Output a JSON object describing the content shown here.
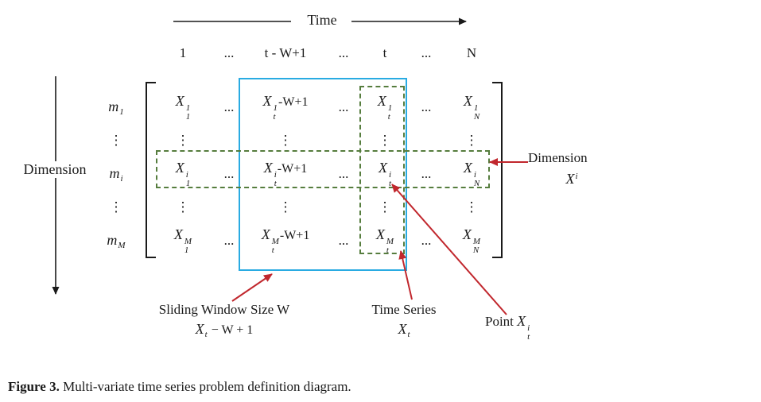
{
  "axes": {
    "time_label": "Time",
    "dimension_label": "Dimension"
  },
  "matrix": {
    "column_headers": [
      "1",
      "...",
      "t - W+1",
      "...",
      "t",
      "...",
      "N"
    ],
    "row_labels": [
      {
        "b": "m",
        "sub": "1"
      },
      {
        "t": "⋮"
      },
      {
        "b": "m",
        "sub": "i"
      },
      {
        "t": "⋮"
      },
      {
        "b": "m",
        "sub": "M"
      }
    ],
    "rows": [
      [
        {
          "b": "X",
          "sup": "1",
          "sub": "1"
        },
        {
          "t": "..."
        },
        {
          "b": "X",
          "sup": "1",
          "sub": "t",
          "tail": "-W+1"
        },
        {
          "t": "..."
        },
        {
          "b": "X",
          "sup": "1",
          "sub": "t"
        },
        {
          "t": "..."
        },
        {
          "b": "X",
          "sup": "1",
          "sub": "N"
        }
      ],
      [
        {
          "t": "⋮"
        },
        {
          "t": ""
        },
        {
          "t": "⋮"
        },
        {
          "t": ""
        },
        {
          "t": "⋮"
        },
        {
          "t": ""
        },
        {
          "t": "⋮"
        }
      ],
      [
        {
          "b": "X",
          "sup": "i",
          "sub": "1"
        },
        {
          "t": "..."
        },
        {
          "b": "X",
          "sup": "i",
          "sub": "t",
          "tail": "-W+1"
        },
        {
          "t": "..."
        },
        {
          "b": "X",
          "sup": "i",
          "sub": "t"
        },
        {
          "t": "..."
        },
        {
          "b": "X",
          "sup": "i",
          "sub": "N"
        }
      ],
      [
        {
          "t": "⋮"
        },
        {
          "t": ""
        },
        {
          "t": "⋮"
        },
        {
          "t": ""
        },
        {
          "t": "⋮"
        },
        {
          "t": ""
        },
        {
          "t": "⋮"
        }
      ],
      [
        {
          "b": "X",
          "sup": "M",
          "sub": "1"
        },
        {
          "t": "..."
        },
        {
          "b": "X",
          "sup": "M",
          "sub": "t",
          "tail": "-W+1"
        },
        {
          "t": "..."
        },
        {
          "b": "X",
          "sup": "M",
          "sub": "t"
        },
        {
          "t": "..."
        },
        {
          "b": "X",
          "sup": "M",
          "sub": "N"
        }
      ]
    ]
  },
  "annotations": {
    "sliding_window_title": "Sliding Window Size W",
    "sliding_window_math": {
      "b": "X",
      "sub": "t",
      "tail": " − W + 1"
    },
    "time_series_title": "Time Series",
    "time_series_math": {
      "b": "X",
      "sub": "t"
    },
    "point_prefix": "Point ",
    "point_math": {
      "b": "X",
      "sup": "i",
      "sub": "t"
    },
    "dimension_title": "Dimension",
    "dimension_math": {
      "b": "X",
      "sup": "i"
    }
  },
  "caption": {
    "label": "Figure 3.",
    "text": " Multi-variate time series problem definition diagram."
  },
  "colors": {
    "window_box": "#29ABE2",
    "highlight_dashed": "#567d3e",
    "annotation_arrow": "#C1272D",
    "text": "#1a1a1a"
  }
}
